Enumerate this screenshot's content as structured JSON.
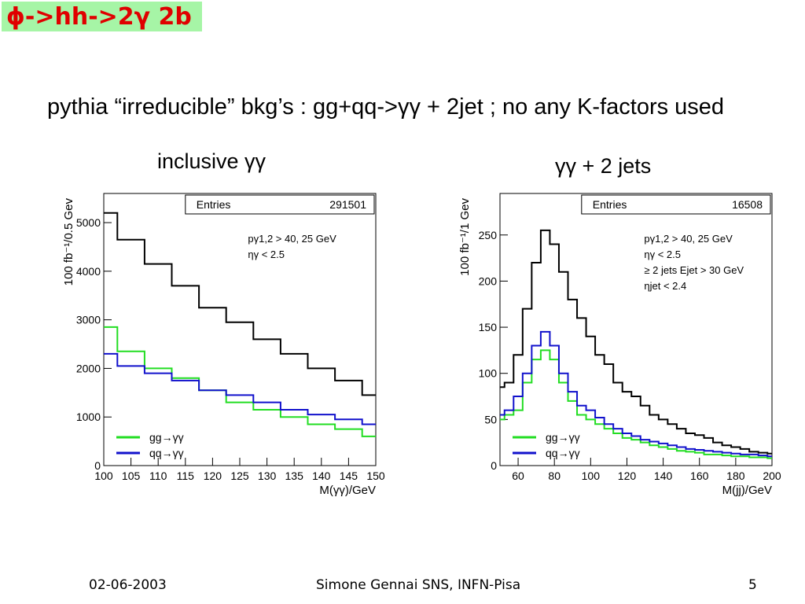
{
  "slide": {
    "title": "ϕ->hh->2γ 2b",
    "subtitle": "pythia “irreducible” bkg’s    : gg+qq->γγ + 2jet ; no any K-factors used",
    "footer_date": "02-06-2003",
    "footer_author": "Simone Gennai SNS, INFN-Pisa",
    "footer_page": "5",
    "title_bg_color": "#a6f5a6",
    "title_color": "#e00000"
  },
  "chart_data": [
    {
      "type": "line",
      "panel_title": "inclusive γγ",
      "xlabel": "M(γγ)/GeV",
      "ylabel": "100 fb⁻¹/0.5 Gev",
      "xlim": [
        100,
        150
      ],
      "ylim": [
        0,
        5600
      ],
      "xticks": [
        100,
        105,
        110,
        115,
        120,
        125,
        130,
        135,
        140,
        145,
        150
      ],
      "yticks": [
        0,
        1000,
        2000,
        3000,
        4000,
        5000
      ],
      "stats": {
        "label": "Entries",
        "value": "291501"
      },
      "annotations": [
        "pγ1,2 > 40, 25 GeV",
        "ηγ < 2.5"
      ],
      "legend": [
        {
          "label": "gg→γγ",
          "color": "#22dd22"
        },
        {
          "label": "qq→γγ",
          "color": "#1111cc"
        }
      ],
      "x": [
        100,
        105,
        110,
        115,
        120,
        125,
        130,
        135,
        140,
        145,
        150
      ],
      "series": [
        {
          "name": "total",
          "color": "#000000",
          "values": [
            5200,
            4650,
            4150,
            3700,
            3250,
            2950,
            2600,
            2300,
            2000,
            1750,
            1450
          ]
        },
        {
          "name": "gg→γγ",
          "color": "#22dd22",
          "values": [
            2850,
            2350,
            2000,
            1800,
            1550,
            1300,
            1150,
            1000,
            850,
            750,
            600
          ]
        },
        {
          "name": "qq→γγ",
          "color": "#1111cc",
          "values": [
            2300,
            2050,
            1900,
            1750,
            1550,
            1450,
            1300,
            1150,
            1050,
            950,
            850
          ]
        }
      ]
    },
    {
      "type": "line",
      "panel_title": "γγ + 2 jets",
      "xlabel": "M(jj)/GeV",
      "ylabel": "100 fb⁻¹/1 Gev",
      "xlim": [
        50,
        200
      ],
      "ylim": [
        0,
        295
      ],
      "xticks": [
        60,
        80,
        100,
        120,
        140,
        160,
        180,
        200
      ],
      "yticks": [
        0,
        50,
        100,
        150,
        200,
        250
      ],
      "stats": {
        "label": "Entries",
        "value": "16508"
      },
      "annotations": [
        "pγ1,2 > 40, 25 GeV",
        "ηγ < 2.5",
        "≥ 2 jets   Ejet > 30 GeV",
        "ηjet < 2.4"
      ],
      "legend": [
        {
          "label": "gg→γγ",
          "color": "#22dd22"
        },
        {
          "label": "qq→γγ",
          "color": "#1111cc"
        }
      ],
      "x": [
        50,
        55,
        60,
        65,
        70,
        75,
        80,
        85,
        90,
        95,
        100,
        105,
        110,
        115,
        120,
        125,
        130,
        135,
        140,
        145,
        150,
        155,
        160,
        165,
        170,
        175,
        180,
        185,
        190,
        195,
        200
      ],
      "series": [
        {
          "name": "total",
          "color": "#000000",
          "values": [
            85,
            90,
            120,
            170,
            220,
            255,
            240,
            210,
            180,
            160,
            140,
            120,
            110,
            90,
            80,
            75,
            65,
            55,
            50,
            45,
            40,
            35,
            33,
            30,
            25,
            22,
            20,
            18,
            15,
            14,
            13
          ]
        },
        {
          "name": "gg→γγ",
          "color": "#22dd22",
          "values": [
            50,
            55,
            60,
            90,
            115,
            125,
            115,
            90,
            70,
            55,
            50,
            45,
            40,
            35,
            30,
            28,
            25,
            22,
            20,
            18,
            16,
            15,
            14,
            12,
            12,
            11,
            10,
            10,
            9,
            9,
            8
          ]
        },
        {
          "name": "qq→γγ",
          "color": "#1111cc",
          "values": [
            55,
            60,
            75,
            100,
            130,
            145,
            130,
            100,
            80,
            65,
            60,
            52,
            45,
            40,
            35,
            32,
            28,
            26,
            24,
            22,
            20,
            18,
            17,
            16,
            15,
            14,
            13,
            12,
            12,
            11,
            10
          ]
        }
      ]
    }
  ]
}
